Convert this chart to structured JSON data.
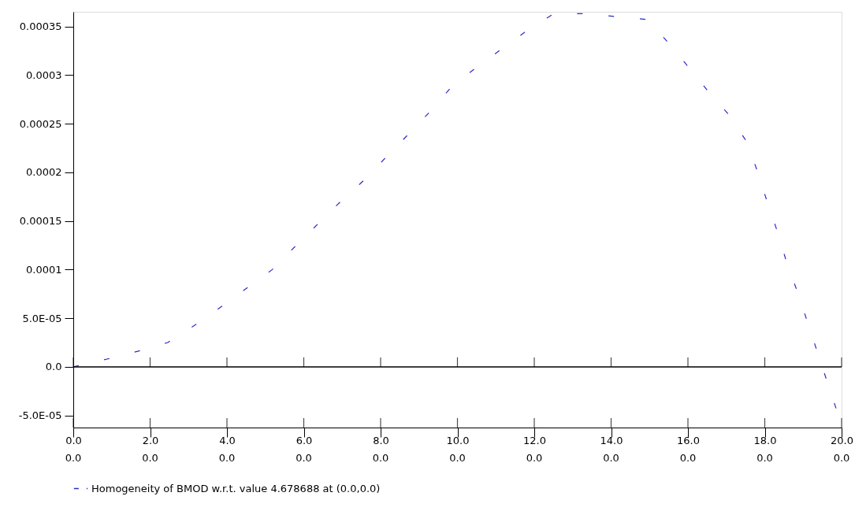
{
  "chart_data": {
    "type": "line",
    "x": [
      0,
      0.88,
      1.68,
      2.46,
      3.17,
      3.86,
      4.52,
      5.18,
      5.78,
      6.37,
      6.96,
      7.57,
      8.13,
      8.72,
      9.3,
      9.85,
      10.5,
      11.16,
      11.82,
      12.51,
      13.31,
      14.15,
      14.95,
      15.47,
      16.04,
      16.55,
      17.07,
      17.52,
      17.81,
      18.06,
      18.32,
      18.58,
      18.87,
      19.12,
      19.38,
      19.63,
      19.9,
      20
    ],
    "series": [
      {
        "name": "Homogeneity of BMOD w.r.t. value 4.678688 at (0.0,0.0)",
        "color": "#2b2bc8",
        "values": [
          0,
          8e-06,
          1.6e-05,
          2.5e-05,
          4.3e-05,
          6.2e-05,
          8.1e-05,
          0.0001,
          0.000124,
          0.000147,
          0.00017,
          0.000192,
          0.000215,
          0.000239,
          0.000263,
          0.000288,
          0.000308,
          0.000327,
          0.000346,
          0.000363,
          0.000363,
          0.00036,
          0.000357,
          0.000334,
          0.000307,
          0.000282,
          0.000259,
          0.000232,
          0.000201,
          0.00017,
          0.00014,
          0.000106,
          7.5e-05,
          4.5e-05,
          1.4e-05,
          -1.6e-05,
          -4.8e-05,
          -5.6e-05
        ]
      }
    ],
    "xlim": [
      0,
      20
    ],
    "xticks": [
      {
        "value": 0,
        "label": "0.0"
      },
      {
        "value": 2,
        "label": "2.0"
      },
      {
        "value": 4,
        "label": "4.0"
      },
      {
        "value": 6,
        "label": "6.0"
      },
      {
        "value": 8,
        "label": "8.0"
      },
      {
        "value": 10,
        "label": "10.0"
      },
      {
        "value": 12,
        "label": "12.0"
      },
      {
        "value": 14,
        "label": "14.0"
      },
      {
        "value": 16,
        "label": "16.0"
      },
      {
        "value": 18,
        "label": "18.0"
      },
      {
        "value": 20,
        "label": "20.0"
      }
    ],
    "annotations": [
      "0.0",
      "0.0",
      "0.0",
      "0.0",
      "0.0",
      "0.0",
      "0.0",
      "0.0",
      "0.0",
      "0.0",
      "0.0"
    ],
    "ylim": [
      -6.24e-05,
      0.000365
    ],
    "yticks": [
      {
        "value": -5e-05,
        "label": "-5.0E-05"
      },
      {
        "value": 0,
        "label": "0.0"
      },
      {
        "value": 5e-05,
        "label": "5.0E-05"
      },
      {
        "value": 0.0001,
        "label": "0.0001"
      },
      {
        "value": 0.00015,
        "label": "0.00015"
      },
      {
        "value": 0.0002,
        "label": "0.0002"
      },
      {
        "value": 0.00025,
        "label": "0.00025"
      },
      {
        "value": 0.0003,
        "label": "0.0003"
      },
      {
        "value": 0.00035,
        "label": "0.00035"
      }
    ],
    "ref_lines": [
      {
        "axis": "y",
        "value": 0
      }
    ],
    "line_style": "dashed",
    "legend": "bottom",
    "grid": false
  }
}
